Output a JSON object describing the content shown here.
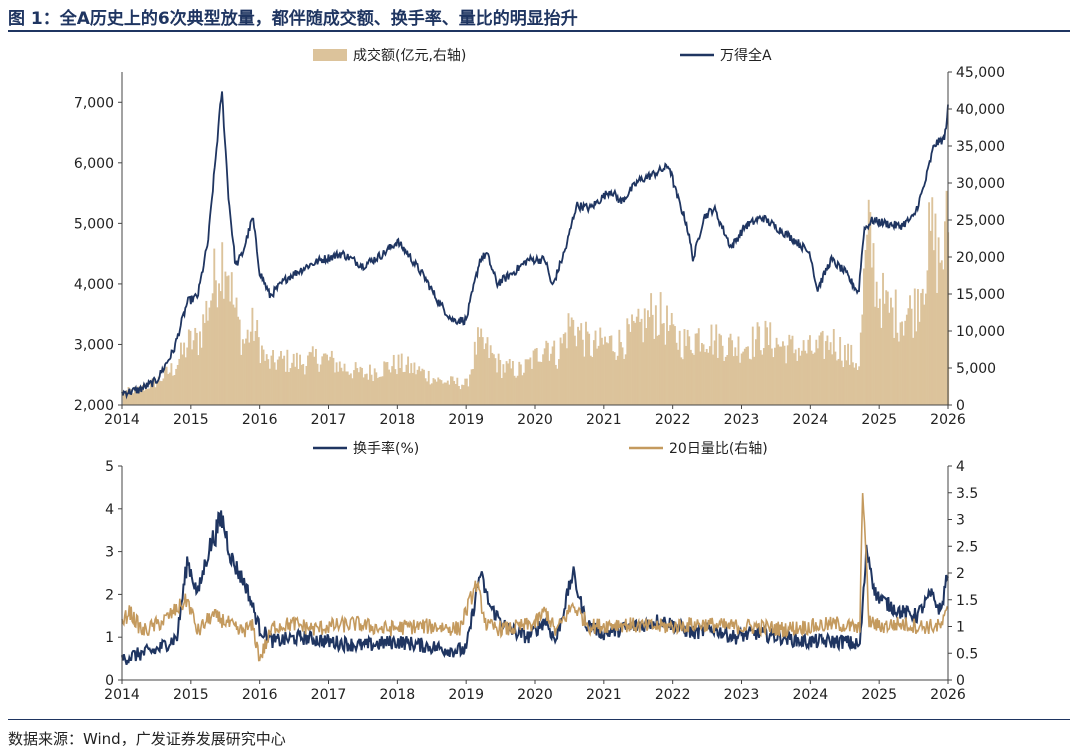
{
  "header": {
    "title": "图 1：全A历史上的6次典型放量，都伴随成交额、换手率、量比的明显抬升"
  },
  "footer": {
    "source": "数据来源：Wind，广发证券发展研究中心"
  },
  "colors": {
    "navy": "#1f3561",
    "tan_fill": "#dcc39b",
    "tan_line": "#c49a5e",
    "title_navy": "#1f3561"
  },
  "chart_data": [
    {
      "type": "line",
      "subtype": "dual-axis line (left) + bar/area (right)",
      "legend_position": "top-center",
      "grid": false,
      "x_ticks": [
        "2014",
        "2015",
        "2016",
        "2017",
        "2018",
        "2019",
        "2020",
        "2021",
        "2022",
        "2023",
        "2024",
        "2025",
        "2026"
      ],
      "xlim": [
        "2014-01",
        "2026-01"
      ],
      "y_left": {
        "lim": [
          2000,
          7500
        ],
        "ticks": [
          "2,000",
          "3,000",
          "4,000",
          "5,000",
          "6,000",
          "7,000"
        ]
      },
      "y_right": {
        "lim": [
          0,
          45000
        ],
        "ticks": [
          "0",
          "5,000",
          "10,000",
          "15,000",
          "20,000",
          "25,000",
          "30,000",
          "35,000",
          "40,000",
          "45,000"
        ]
      },
      "series": [
        {
          "name": "成交额(亿元,右轴)",
          "axis": "right",
          "style": "bars",
          "points": [
            [
              2014.0,
              1900
            ],
            [
              2014.25,
              2300
            ],
            [
              2014.5,
              3500
            ],
            [
              2014.75,
              5500
            ],
            [
              2014.95,
              9000
            ],
            [
              2015.1,
              9500
            ],
            [
              2015.25,
              15000
            ],
            [
              2015.4,
              21000
            ],
            [
              2015.5,
              22500
            ],
            [
              2015.6,
              15000
            ],
            [
              2015.75,
              9000
            ],
            [
              2015.9,
              11500
            ],
            [
              2016.0,
              8500
            ],
            [
              2016.1,
              6000
            ],
            [
              2016.3,
              6500
            ],
            [
              2016.6,
              6200
            ],
            [
              2016.9,
              7000
            ],
            [
              2017.2,
              5500
            ],
            [
              2017.5,
              4500
            ],
            [
              2017.8,
              5500
            ],
            [
              2018.0,
              6000
            ],
            [
              2018.3,
              5000
            ],
            [
              2018.6,
              3500
            ],
            [
              2018.9,
              3200
            ],
            [
              2019.0,
              3000
            ],
            [
              2019.15,
              9000
            ],
            [
              2019.3,
              8000
            ],
            [
              2019.5,
              5500
            ],
            [
              2019.8,
              5000
            ],
            [
              2020.0,
              7000
            ],
            [
              2020.15,
              9500
            ],
            [
              2020.3,
              7000
            ],
            [
              2020.5,
              12000
            ],
            [
              2020.6,
              11000
            ],
            [
              2020.8,
              8500
            ],
            [
              2021.0,
              9000
            ],
            [
              2021.2,
              9000
            ],
            [
              2021.5,
              11000
            ],
            [
              2021.7,
              13500
            ],
            [
              2021.85,
              12500
            ],
            [
              2022.0,
              10000
            ],
            [
              2022.2,
              9000
            ],
            [
              2022.4,
              10500
            ],
            [
              2022.6,
              9500
            ],
            [
              2022.9,
              8500
            ],
            [
              2023.1,
              9000
            ],
            [
              2023.3,
              10000
            ],
            [
              2023.6,
              8500
            ],
            [
              2023.9,
              8000
            ],
            [
              2024.1,
              8000
            ],
            [
              2024.3,
              9500
            ],
            [
              2024.5,
              7500
            ],
            [
              2024.7,
              6000
            ],
            [
              2024.78,
              20000
            ],
            [
              2024.85,
              25000
            ],
            [
              2024.95,
              17000
            ],
            [
              2025.1,
              14000
            ],
            [
              2025.3,
              13000
            ],
            [
              2025.5,
              14000
            ],
            [
              2025.65,
              20000
            ],
            [
              2025.75,
              25000
            ],
            [
              2025.85,
              21000
            ],
            [
              2025.95,
              23000
            ],
            [
              2026.0,
              30000
            ]
          ]
        },
        {
          "name": "万得全A",
          "axis": "left",
          "style": "line",
          "points": [
            [
              2014.0,
              2200
            ],
            [
              2014.25,
              2250
            ],
            [
              2014.5,
              2400
            ],
            [
              2014.75,
              2900
            ],
            [
              2014.95,
              3700
            ],
            [
              2015.1,
              3800
            ],
            [
              2015.25,
              4700
            ],
            [
              2015.45,
              7200
            ],
            [
              2015.55,
              5400
            ],
            [
              2015.65,
              4300
            ],
            [
              2015.75,
              4500
            ],
            [
              2015.9,
              5100
            ],
            [
              2016.0,
              4200
            ],
            [
              2016.15,
              3800
            ],
            [
              2016.4,
              4100
            ],
            [
              2016.7,
              4300
            ],
            [
              2016.9,
              4400
            ],
            [
              2017.2,
              4500
            ],
            [
              2017.5,
              4300
            ],
            [
              2017.8,
              4500
            ],
            [
              2018.0,
              4700
            ],
            [
              2018.15,
              4500
            ],
            [
              2018.4,
              4100
            ],
            [
              2018.6,
              3700
            ],
            [
              2018.8,
              3400
            ],
            [
              2019.0,
              3400
            ],
            [
              2019.2,
              4400
            ],
            [
              2019.3,
              4500
            ],
            [
              2019.45,
              4000
            ],
            [
              2019.7,
              4200
            ],
            [
              2019.9,
              4400
            ],
            [
              2020.15,
              4400
            ],
            [
              2020.25,
              3950
            ],
            [
              2020.45,
              4600
            ],
            [
              2020.6,
              5300
            ],
            [
              2020.8,
              5250
            ],
            [
              2021.1,
              5550
            ],
            [
              2021.25,
              5350
            ],
            [
              2021.5,
              5700
            ],
            [
              2021.7,
              5800
            ],
            [
              2021.95,
              5950
            ],
            [
              2022.05,
              5500
            ],
            [
              2022.2,
              5000
            ],
            [
              2022.3,
              4400
            ],
            [
              2022.45,
              5100
            ],
            [
              2022.6,
              5250
            ],
            [
              2022.85,
              4600
            ],
            [
              2023.05,
              4950
            ],
            [
              2023.3,
              5100
            ],
            [
              2023.55,
              4900
            ],
            [
              2023.8,
              4700
            ],
            [
              2024.0,
              4500
            ],
            [
              2024.1,
              3900
            ],
            [
              2024.3,
              4400
            ],
            [
              2024.5,
              4200
            ],
            [
              2024.7,
              3850
            ],
            [
              2024.78,
              4900
            ],
            [
              2024.9,
              5050
            ],
            [
              2025.1,
              5000
            ],
            [
              2025.3,
              4950
            ],
            [
              2025.5,
              5100
            ],
            [
              2025.65,
              5600
            ],
            [
              2025.8,
              6300
            ],
            [
              2025.95,
              6400
            ],
            [
              2026.0,
              6900
            ]
          ]
        }
      ]
    },
    {
      "type": "line",
      "subtype": "dual-axis line",
      "legend_position": "top-center",
      "grid": false,
      "x_ticks": [
        "2014",
        "2015",
        "2016",
        "2017",
        "2018",
        "2019",
        "2020",
        "2021",
        "2022",
        "2023",
        "2024",
        "2025",
        "2026"
      ],
      "xlim": [
        "2014-01",
        "2026-01"
      ],
      "y_left": {
        "lim": [
          0,
          5
        ],
        "ticks": [
          "0",
          "1",
          "2",
          "3",
          "4",
          "5"
        ]
      },
      "y_right": {
        "lim": [
          0,
          4
        ],
        "ticks": [
          "0",
          "0.5",
          "1",
          "1.5",
          "2",
          "2.5",
          "3",
          "3.5",
          "4"
        ]
      },
      "series": [
        {
          "name": "换手率(%)",
          "axis": "left",
          "style": "line",
          "points": [
            [
              2014.0,
              0.5
            ],
            [
              2014.25,
              0.6
            ],
            [
              2014.5,
              0.7
            ],
            [
              2014.8,
              1.0
            ],
            [
              2014.95,
              2.8
            ],
            [
              2015.1,
              2.0
            ],
            [
              2015.25,
              3.0
            ],
            [
              2015.45,
              3.8
            ],
            [
              2015.6,
              2.8
            ],
            [
              2015.8,
              2.2
            ],
            [
              2016.0,
              1.2
            ],
            [
              2016.2,
              0.9
            ],
            [
              2016.6,
              1.0
            ],
            [
              2017.0,
              0.9
            ],
            [
              2017.5,
              0.8
            ],
            [
              2018.0,
              0.9
            ],
            [
              2018.4,
              0.8
            ],
            [
              2018.8,
              0.7
            ],
            [
              2019.0,
              0.7
            ],
            [
              2019.2,
              2.5
            ],
            [
              2019.35,
              1.7
            ],
            [
              2019.6,
              1.2
            ],
            [
              2019.9,
              1.0
            ],
            [
              2020.15,
              1.4
            ],
            [
              2020.3,
              0.9
            ],
            [
              2020.55,
              2.5
            ],
            [
              2020.75,
              1.3
            ],
            [
              2021.0,
              1.1
            ],
            [
              2021.3,
              1.2
            ],
            [
              2021.6,
              1.3
            ],
            [
              2021.8,
              1.4
            ],
            [
              2022.0,
              1.3
            ],
            [
              2022.3,
              1.1
            ],
            [
              2022.6,
              1.2
            ],
            [
              2022.9,
              1.0
            ],
            [
              2023.2,
              1.1
            ],
            [
              2023.6,
              1.0
            ],
            [
              2023.9,
              0.9
            ],
            [
              2024.2,
              0.9
            ],
            [
              2024.5,
              0.9
            ],
            [
              2024.72,
              0.8
            ],
            [
              2024.82,
              3.1
            ],
            [
              2024.95,
              2.0
            ],
            [
              2025.1,
              1.8
            ],
            [
              2025.3,
              1.6
            ],
            [
              2025.55,
              1.5
            ],
            [
              2025.75,
              2.0
            ],
            [
              2025.9,
              1.6
            ],
            [
              2026.0,
              2.6
            ]
          ]
        },
        {
          "name": "20日量比(右轴)",
          "axis": "right",
          "style": "line",
          "points": [
            [
              2014.0,
              1.0
            ],
            [
              2014.1,
              1.3
            ],
            [
              2014.3,
              0.9
            ],
            [
              2014.6,
              1.1
            ],
            [
              2014.95,
              1.5
            ],
            [
              2015.1,
              0.9
            ],
            [
              2015.3,
              1.2
            ],
            [
              2015.5,
              1.1
            ],
            [
              2015.7,
              0.9
            ],
            [
              2015.9,
              1.0
            ],
            [
              2016.0,
              0.4
            ],
            [
              2016.2,
              1.0
            ],
            [
              2016.5,
              1.05
            ],
            [
              2016.8,
              0.95
            ],
            [
              2017.0,
              1.0
            ],
            [
              2017.4,
              1.05
            ],
            [
              2017.8,
              0.95
            ],
            [
              2018.2,
              1.0
            ],
            [
              2018.6,
              1.0
            ],
            [
              2018.9,
              0.95
            ],
            [
              2019.15,
              1.8
            ],
            [
              2019.3,
              1.0
            ],
            [
              2019.6,
              0.95
            ],
            [
              2020.0,
              1.05
            ],
            [
              2020.15,
              1.3
            ],
            [
              2020.3,
              0.9
            ],
            [
              2020.55,
              1.4
            ],
            [
              2020.8,
              1.0
            ],
            [
              2021.2,
              1.05
            ],
            [
              2021.6,
              1.0
            ],
            [
              2022.0,
              1.0
            ],
            [
              2022.4,
              1.05
            ],
            [
              2022.8,
              1.0
            ],
            [
              2023.2,
              1.0
            ],
            [
              2023.6,
              0.95
            ],
            [
              2024.0,
              1.0
            ],
            [
              2024.4,
              1.05
            ],
            [
              2024.72,
              0.95
            ],
            [
              2024.76,
              3.7
            ],
            [
              2024.85,
              1.1
            ],
            [
              2025.0,
              1.0
            ],
            [
              2025.3,
              1.05
            ],
            [
              2025.6,
              1.0
            ],
            [
              2025.9,
              1.0
            ],
            [
              2026.0,
              1.3
            ]
          ]
        }
      ]
    }
  ]
}
